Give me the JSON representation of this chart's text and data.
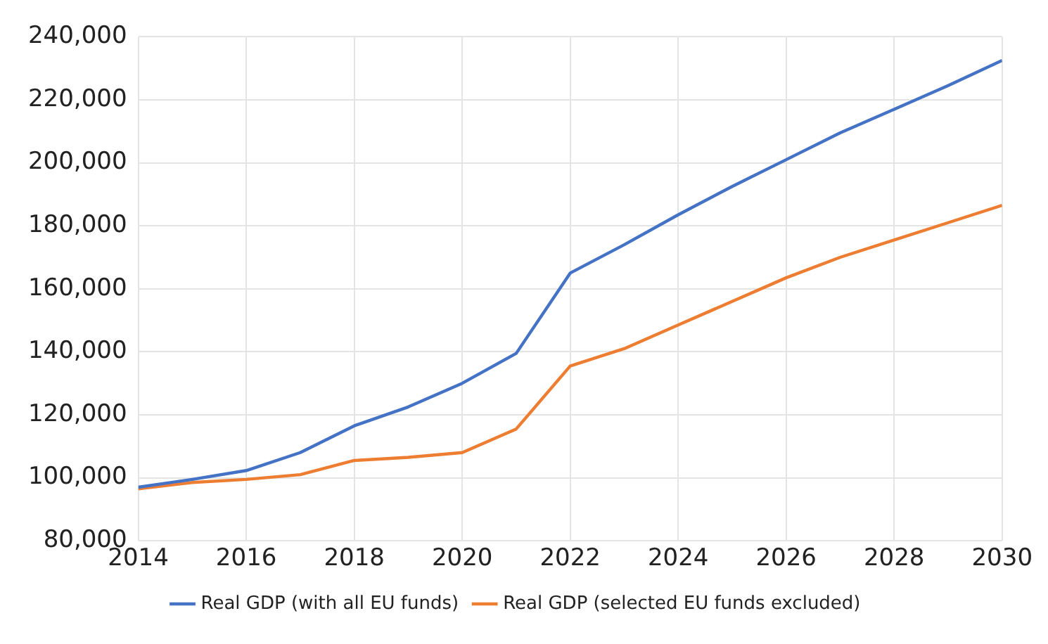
{
  "chart_data": {
    "type": "line",
    "x": [
      2014,
      2015,
      2016,
      2017,
      2018,
      2019,
      2020,
      2021,
      2022,
      2023,
      2024,
      2025,
      2026,
      2027,
      2028,
      2029,
      2030
    ],
    "series": [
      {
        "name": "Real GDP (with all EU funds)",
        "color": "#4472c4",
        "values": [
          97000,
          99500,
          102300,
          108000,
          116500,
          122500,
          130000,
          139500,
          165000,
          174000,
          183500,
          192500,
          201000,
          209500,
          217000,
          224500,
          232500
        ]
      },
      {
        "name": "Real GDP (selected EU funds excluded)",
        "color": "#ed7d31",
        "values": [
          96500,
          98500,
          99500,
          101000,
          105500,
          106500,
          108000,
          115500,
          135500,
          141000,
          148500,
          156000,
          163500,
          170000,
          175500,
          181000,
          186500
        ]
      }
    ],
    "xlim": [
      2014,
      2030
    ],
    "xticks": [
      2014,
      2016,
      2018,
      2020,
      2022,
      2024,
      2026,
      2028,
      2030
    ],
    "ylim": [
      80000,
      240000
    ],
    "yticks": [
      {
        "value": 80000,
        "label": "80,000"
      },
      {
        "value": 100000,
        "label": "100,000"
      },
      {
        "value": 120000,
        "label": "120,000"
      },
      {
        "value": 140000,
        "label": "140,000"
      },
      {
        "value": 160000,
        "label": "160,000"
      },
      {
        "value": 180000,
        "label": "180,000"
      },
      {
        "value": 200000,
        "label": "200,000"
      },
      {
        "value": 220000,
        "label": "220,000"
      },
      {
        "value": 240000,
        "label": "240,000"
      }
    ],
    "grid": true,
    "legend": "bottom",
    "marker": "none",
    "line_style": "solid"
  }
}
